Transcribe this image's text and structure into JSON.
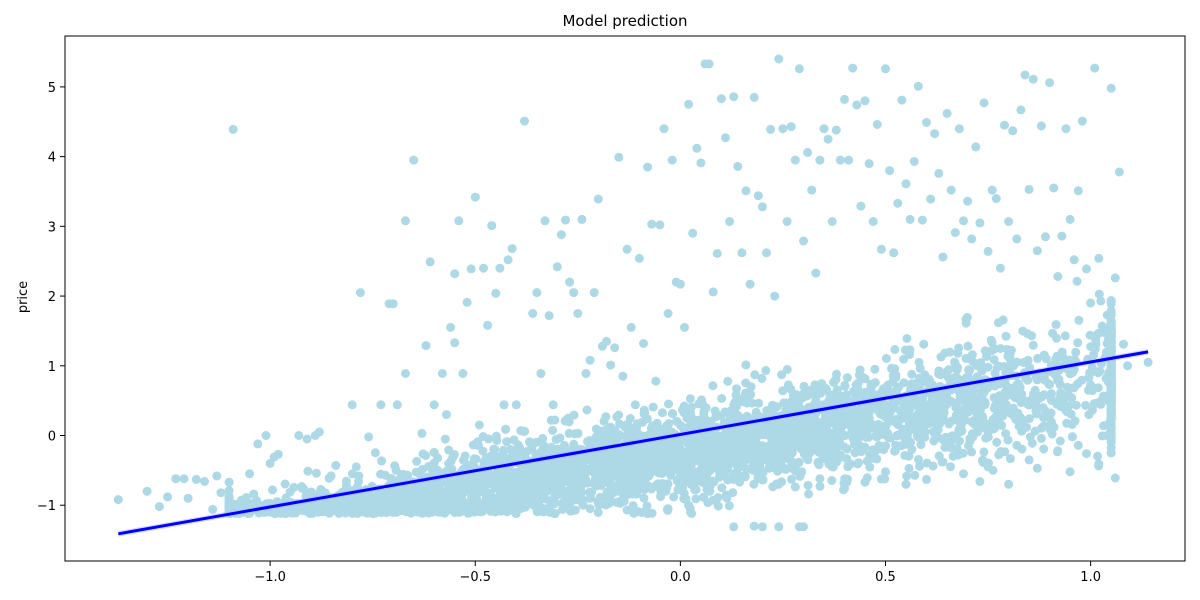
{
  "chart_data": {
    "type": "scatter",
    "title": "Model prediction",
    "xlabel": "",
    "ylabel": "price",
    "xlim": [
      -1.5,
      1.23
    ],
    "ylim": [
      -1.8,
      5.73
    ],
    "x_ticks": [
      -1.0,
      -0.5,
      0.0,
      0.5,
      1.0
    ],
    "x_tick_labels": [
      "−1.0",
      "−0.5",
      "0.0",
      "0.5",
      "1.0"
    ],
    "y_ticks": [
      -1,
      0,
      1,
      2,
      3,
      4,
      5
    ],
    "y_tick_labels": [
      "−1",
      "0",
      "1",
      "2",
      "3",
      "4",
      "5"
    ],
    "grid": false,
    "colors": {
      "points": "#add8e6",
      "regression_line": "#0000ff",
      "confidence_band": "#b3b3ff"
    },
    "regression_line": {
      "x": [
        -1.37,
        1.14
      ],
      "y": [
        -1.41,
        1.2
      ]
    },
    "series": [
      {
        "name": "",
        "note_points": [
          [
            -1.37,
            -0.92
          ],
          [
            -1.3,
            -0.8
          ],
          [
            -1.27,
            -1.02
          ],
          [
            -1.25,
            -0.88
          ],
          [
            -1.23,
            -0.62
          ],
          [
            -1.21,
            -0.62
          ],
          [
            -1.2,
            -0.9
          ],
          [
            -1.18,
            -0.63
          ],
          [
            -1.16,
            -0.66
          ],
          [
            -1.14,
            -1.06
          ],
          [
            -1.13,
            -0.58
          ],
          [
            -1.12,
            -0.82
          ],
          [
            -1.1,
            -0.67
          ],
          [
            -1.09,
            4.39
          ],
          [
            -1.07,
            -0.93
          ],
          [
            -1.05,
            -0.55
          ],
          [
            -1.04,
            -0.84
          ],
          [
            -1.03,
            -0.12
          ],
          [
            -1.01,
            0.0
          ],
          [
            -1.0,
            -0.4
          ],
          [
            -0.99,
            -0.31
          ],
          [
            -0.98,
            -0.27
          ],
          [
            -0.96,
            -1.02
          ],
          [
            -0.93,
            0.0
          ],
          [
            -0.91,
            -0.05
          ],
          [
            -0.89,
            0.0
          ],
          [
            -0.88,
            0.05
          ],
          [
            -0.84,
            -0.43
          ],
          [
            -0.8,
            0.44
          ],
          [
            -0.79,
            -0.45
          ],
          [
            -0.78,
            2.05
          ],
          [
            -0.76,
            -0.02
          ],
          [
            -0.73,
            0.44
          ],
          [
            -0.71,
            1.89
          ],
          [
            -0.7,
            1.89
          ],
          [
            -0.69,
            0.44
          ],
          [
            -0.67,
            0.89
          ],
          [
            -0.67,
            3.08
          ],
          [
            -0.65,
            3.95
          ],
          [
            -0.63,
            0.03
          ],
          [
            -0.62,
            1.29
          ],
          [
            -0.61,
            2.49
          ],
          [
            -0.6,
            0.44
          ],
          [
            -0.58,
            0.89
          ],
          [
            -0.57,
            0.3
          ],
          [
            -0.56,
            1.55
          ],
          [
            -0.55,
            2.32
          ],
          [
            -0.55,
            1.33
          ],
          [
            -0.54,
            3.08
          ],
          [
            -0.53,
            0.89
          ],
          [
            -0.52,
            1.91
          ],
          [
            -0.51,
            2.39
          ],
          [
            -0.5,
            3.42
          ],
          [
            -0.49,
            0.15
          ],
          [
            -0.48,
            2.4
          ],
          [
            -0.47,
            1.58
          ],
          [
            -0.46,
            3.01
          ],
          [
            -0.45,
            2.04
          ],
          [
            -0.44,
            2.4
          ],
          [
            -0.43,
            0.44
          ],
          [
            -0.42,
            2.52
          ],
          [
            -0.41,
            2.68
          ],
          [
            -0.4,
            0.44
          ],
          [
            -0.38,
            4.51
          ],
          [
            -0.36,
            1.75
          ],
          [
            -0.35,
            2.05
          ],
          [
            -0.34,
            0.89
          ],
          [
            -0.33,
            3.08
          ],
          [
            -0.32,
            1.72
          ],
          [
            -0.31,
            0.44
          ],
          [
            -0.3,
            2.42
          ],
          [
            -0.29,
            2.88
          ],
          [
            -0.28,
            3.09
          ],
          [
            -0.27,
            2.2
          ],
          [
            -0.26,
            2.05
          ],
          [
            -0.25,
            1.75
          ],
          [
            -0.24,
            3.1
          ],
          [
            -0.23,
            0.89
          ],
          [
            -0.22,
            1.08
          ],
          [
            -0.21,
            2.05
          ],
          [
            -0.2,
            3.39
          ],
          [
            -0.19,
            1.28
          ],
          [
            -0.18,
            1.35
          ],
          [
            -0.17,
            1.01
          ],
          [
            -0.16,
            1.26
          ],
          [
            -0.15,
            3.99
          ],
          [
            -0.14,
            0.85
          ],
          [
            -0.13,
            2.67
          ],
          [
            -0.12,
            1.55
          ],
          [
            -0.11,
            0.44
          ],
          [
            -0.1,
            2.54
          ],
          [
            -0.09,
            1.32
          ],
          [
            -0.08,
            3.85
          ],
          [
            -0.07,
            3.03
          ],
          [
            -0.06,
            0.78
          ],
          [
            -0.05,
            3.02
          ],
          [
            -0.04,
            4.4
          ],
          [
            -0.03,
            1.75
          ],
          [
            -0.02,
            3.95
          ],
          [
            -0.01,
            2.2
          ],
          [
            0.0,
            2.17
          ],
          [
            0.01,
            1.55
          ],
          [
            0.02,
            4.75
          ],
          [
            0.03,
            2.9
          ],
          [
            0.04,
            4.12
          ],
          [
            0.05,
            3.91
          ],
          [
            0.06,
            5.33
          ],
          [
            0.07,
            5.33
          ],
          [
            0.08,
            2.06
          ],
          [
            0.09,
            2.61
          ],
          [
            0.1,
            4.83
          ],
          [
            0.11,
            4.27
          ],
          [
            0.12,
            3.07
          ],
          [
            0.13,
            4.86
          ],
          [
            0.14,
            3.86
          ],
          [
            0.15,
            2.62
          ],
          [
            0.16,
            3.51
          ],
          [
            0.17,
            2.17
          ],
          [
            0.18,
            4.85
          ],
          [
            0.19,
            3.44
          ],
          [
            0.2,
            3.28
          ],
          [
            0.21,
            2.62
          ],
          [
            0.22,
            4.39
          ],
          [
            0.23,
            2.0
          ],
          [
            0.24,
            5.4
          ],
          [
            0.25,
            4.4
          ],
          [
            0.26,
            3.07
          ],
          [
            0.27,
            4.43
          ],
          [
            0.28,
            3.95
          ],
          [
            0.29,
            5.26
          ],
          [
            0.3,
            2.79
          ],
          [
            0.31,
            4.06
          ],
          [
            0.32,
            3.52
          ],
          [
            0.33,
            2.33
          ],
          [
            0.34,
            3.95
          ],
          [
            0.35,
            4.4
          ],
          [
            0.36,
            4.25
          ],
          [
            0.37,
            3.07
          ],
          [
            0.38,
            4.38
          ],
          [
            0.39,
            3.95
          ],
          [
            0.4,
            4.82
          ],
          [
            0.41,
            3.95
          ],
          [
            0.42,
            5.27
          ],
          [
            0.43,
            4.74
          ],
          [
            0.44,
            3.29
          ],
          [
            0.45,
            4.8
          ],
          [
            0.46,
            3.9
          ],
          [
            0.47,
            3.07
          ],
          [
            0.48,
            4.46
          ],
          [
            0.49,
            2.67
          ],
          [
            0.5,
            5.26
          ],
          [
            0.51,
            3.8
          ],
          [
            0.52,
            2.62
          ],
          [
            0.53,
            3.33
          ],
          [
            0.54,
            4.81
          ],
          [
            0.55,
            3.61
          ],
          [
            0.56,
            3.1
          ],
          [
            0.57,
            3.93
          ],
          [
            0.58,
            5.01
          ],
          [
            0.59,
            3.09
          ],
          [
            0.6,
            4.49
          ],
          [
            0.61,
            3.39
          ],
          [
            0.62,
            4.33
          ],
          [
            0.63,
            3.76
          ],
          [
            0.64,
            2.56
          ],
          [
            0.65,
            4.62
          ],
          [
            0.66,
            3.52
          ],
          [
            0.67,
            2.91
          ],
          [
            0.68,
            4.4
          ],
          [
            0.69,
            3.08
          ],
          [
            0.7,
            3.36
          ],
          [
            0.71,
            2.82
          ],
          [
            0.72,
            4.14
          ],
          [
            0.73,
            3.05
          ],
          [
            0.74,
            4.77
          ],
          [
            0.75,
            2.64
          ],
          [
            0.76,
            3.52
          ],
          [
            0.77,
            3.4
          ],
          [
            0.78,
            2.4
          ],
          [
            0.79,
            4.45
          ],
          [
            0.8,
            3.07
          ],
          [
            0.81,
            4.37
          ],
          [
            0.82,
            2.82
          ],
          [
            0.83,
            4.67
          ],
          [
            0.84,
            5.17
          ],
          [
            0.85,
            3.53
          ],
          [
            0.86,
            5.11
          ],
          [
            0.87,
            2.65
          ],
          [
            0.88,
            4.44
          ],
          [
            0.89,
            2.85
          ],
          [
            0.9,
            5.06
          ],
          [
            0.91,
            3.55
          ],
          [
            0.92,
            2.28
          ],
          [
            0.93,
            2.86
          ],
          [
            0.94,
            4.4
          ],
          [
            0.95,
            3.1
          ],
          [
            0.96,
            2.52
          ],
          [
            0.97,
            3.51
          ],
          [
            0.98,
            4.51
          ],
          [
            0.99,
            2.39
          ],
          [
            1.0,
            1.9
          ],
          [
            1.01,
            5.27
          ],
          [
            1.02,
            2.54
          ],
          [
            1.03,
            1.55
          ],
          [
            1.04,
            1.32
          ],
          [
            1.05,
            4.98
          ],
          [
            1.06,
            2.26
          ],
          [
            1.07,
            3.78
          ],
          [
            1.08,
            1.31
          ],
          [
            1.09,
            1.0
          ],
          [
            1.14,
            1.05
          ],
          [
            1.06,
            -0.61
          ],
          [
            1.04,
            0.0
          ],
          [
            1.02,
            -0.41
          ],
          [
            0.99,
            -0.26
          ],
          [
            0.97,
            -0.14
          ],
          [
            0.95,
            -0.52
          ],
          [
            0.92,
            -0.22
          ],
          [
            0.9,
            0.13
          ],
          [
            0.87,
            -0.47
          ],
          [
            0.85,
            -0.35
          ],
          [
            0.82,
            -0.14
          ],
          [
            0.8,
            -0.7
          ],
          [
            0.75,
            -0.45
          ],
          [
            0.73,
            -0.66
          ],
          [
            0.69,
            -0.55
          ],
          [
            0.64,
            -0.38
          ],
          [
            0.6,
            -0.63
          ],
          [
            0.55,
            -0.7
          ],
          [
            0.5,
            -0.52
          ],
          [
            0.45,
            -0.67
          ],
          [
            0.4,
            -0.76
          ],
          [
            0.34,
            -0.62
          ],
          [
            0.3,
            -1.31
          ],
          [
            0.29,
            -1.31
          ],
          [
            0.24,
            -1.31
          ],
          [
            0.2,
            -1.31
          ],
          [
            0.18,
            -1.3
          ],
          [
            0.13,
            -1.31
          ],
          [
            0.08,
            -0.93
          ],
          [
            0.02,
            -1.0
          ],
          [
            -0.03,
            -1.05
          ],
          [
            -0.08,
            -1.12
          ],
          [
            -0.13,
            -1.07
          ],
          [
            -0.18,
            -0.98
          ]
        ]
      }
    ],
    "bulk_cloud": {
      "note": "dense band of points following the trend, roughly y ≈ 0.1 + 1.04·x with spread",
      "x_range": [
        -1.1,
        1.05
      ],
      "intercept": 0.1,
      "slope": 1.04,
      "spread": 0.45,
      "count": 4200
    }
  }
}
